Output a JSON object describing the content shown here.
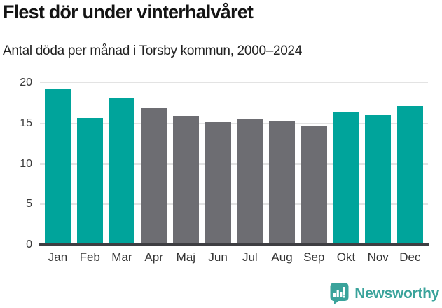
{
  "header": {
    "title": "Flest dör under vinterhalvåret",
    "subtitle": "Antal döda per månad i Torsby kommun, 2000–2024"
  },
  "chart_data": {
    "type": "bar",
    "title": "Flest dör under vinterhalvåret",
    "subtitle": "Antal döda per månad i Torsby kommun, 2000–2024",
    "categories": [
      "Jan",
      "Feb",
      "Mar",
      "Apr",
      "Maj",
      "Jun",
      "Jul",
      "Aug",
      "Sep",
      "Okt",
      "Nov",
      "Dec"
    ],
    "values": [
      19.1,
      15.6,
      18.1,
      16.8,
      15.8,
      15.1,
      15.5,
      15.2,
      14.6,
      16.4,
      15.9,
      17.1
    ],
    "bar_colors": [
      "#00a49b",
      "#00a49b",
      "#00a49b",
      "#6d6d72",
      "#6d6d72",
      "#6d6d72",
      "#6d6d72",
      "#6d6d72",
      "#6d6d72",
      "#00a49b",
      "#00a49b",
      "#00a49b"
    ],
    "highlighted_months": [
      "Jan",
      "Feb",
      "Mar",
      "Okt",
      "Nov",
      "Dec"
    ],
    "highlight_color": "#00a49b",
    "muted_color": "#6d6d72",
    "xlabel": "",
    "ylabel": "",
    "ylim": [
      0,
      20
    ],
    "yticks": [
      0,
      5,
      10,
      15,
      20
    ],
    "grid": true,
    "legend": "none"
  },
  "footer": {
    "brand": "Newsworthy",
    "logo_icon": "newsworthy-chart-bubble-icon",
    "brand_color": "#3aa39b"
  }
}
